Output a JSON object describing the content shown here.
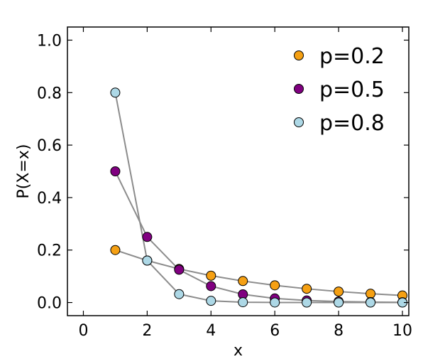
{
  "chart_data": {
    "type": "scatter",
    "title": "",
    "xlabel": "x",
    "ylabel": "P(X=x)",
    "xlim": [
      -0.5,
      10.2
    ],
    "ylim": [
      -0.05,
      1.05
    ],
    "xticks": [
      0,
      2,
      4,
      6,
      8,
      10
    ],
    "yticks": [
      0.0,
      0.2,
      0.4,
      0.6,
      0.8,
      1.0
    ],
    "ytick_labels": [
      "0.0",
      "0.2",
      "0.4",
      "0.6",
      "0.8",
      "1.0"
    ],
    "grid": false,
    "legend_position": "top-right",
    "line_color": "#8c8c8c",
    "x": [
      1,
      2,
      3,
      4,
      5,
      6,
      7,
      8,
      9,
      10
    ],
    "series": [
      {
        "name": "p=0.2",
        "color": "#f5a013",
        "values": [
          0.2,
          0.16,
          0.128,
          0.1024,
          0.08192,
          0.065536,
          0.0524288,
          0.04194304,
          0.033554432,
          0.0268435456
        ]
      },
      {
        "name": "p=0.5",
        "color": "#800080",
        "values": [
          0.5,
          0.25,
          0.125,
          0.0625,
          0.03125,
          0.015625,
          0.0078125,
          0.00390625,
          0.001953125,
          0.0009765625
        ]
      },
      {
        "name": "p=0.8",
        "color": "#add8e6",
        "values": [
          0.8,
          0.16,
          0.032,
          0.0064,
          0.00128,
          0.000256,
          5.12e-05,
          1.024e-05,
          2.048e-06,
          4.096e-07
        ]
      }
    ]
  }
}
